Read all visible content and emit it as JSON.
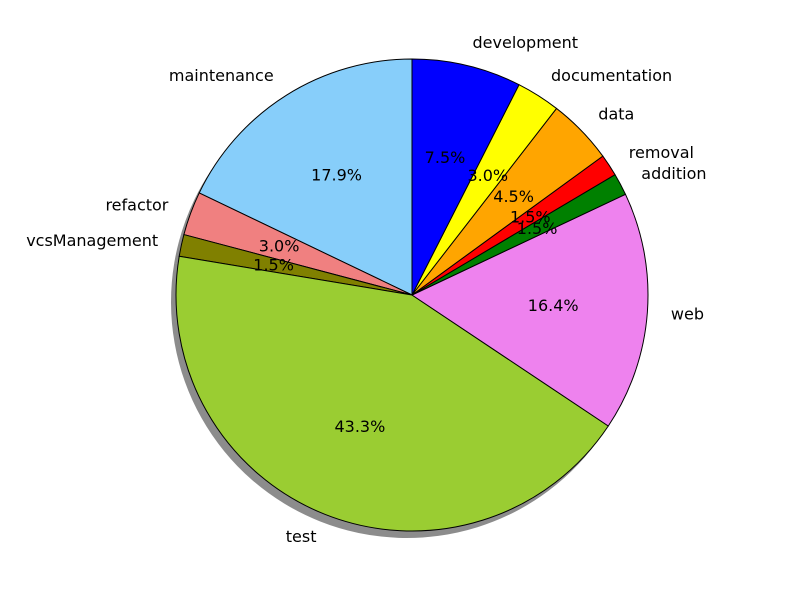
{
  "chart_data": {
    "type": "pie",
    "title": "",
    "shadow": true,
    "start_angle_deg": 90,
    "direction": "counterclockwise",
    "slices": [
      {
        "label": "maintenance",
        "value": 17.9,
        "pct_text": "17.9%",
        "color": "#87CEFA"
      },
      {
        "label": "refactor",
        "value": 3.0,
        "pct_text": "3.0%",
        "color": "#F08080"
      },
      {
        "label": "vcsManagement",
        "value": 1.5,
        "pct_text": "1.5%",
        "color": "#808000"
      },
      {
        "label": "test",
        "value": 43.3,
        "pct_text": "43.3%",
        "color": "#9ACD32"
      },
      {
        "label": "web",
        "value": 16.4,
        "pct_text": "16.4%",
        "color": "#EE82EE"
      },
      {
        "label": "addition",
        "value": 1.5,
        "pct_text": "1.5%",
        "color": "#008000"
      },
      {
        "label": "removal",
        "value": 1.5,
        "pct_text": "1.5%",
        "color": "#FF0000"
      },
      {
        "label": "data",
        "value": 4.5,
        "pct_text": "4.5%",
        "color": "#FFA500"
      },
      {
        "label": "documentation",
        "value": 3.0,
        "pct_text": "3.0%",
        "color": "#FFFF00"
      },
      {
        "label": "development",
        "value": 7.5,
        "pct_text": "7.5%",
        "color": "#0000FF"
      }
    ]
  }
}
